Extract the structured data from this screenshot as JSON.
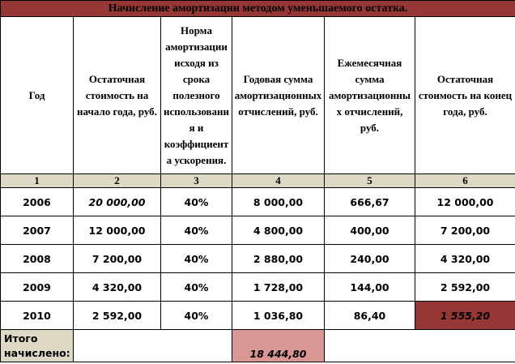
{
  "title": "Начисление амортизации методом уменьшаемого остатка.",
  "table": {
    "header": [
      "Год",
      "Остаточная стоимость на начало года, руб.",
      "Норма амортизации исходя из срока полезного использования и коэффициента ускорения.",
      "Годовая сумма амортизационных отчислений, руб.",
      "Ежемесячная сумма амортизационных отчислений, руб.",
      "Остаточная стоимость на конец года, руб."
    ],
    "column_numbers": [
      "1",
      "2",
      "3",
      "4",
      "5",
      "6"
    ],
    "rows": [
      [
        "2006",
        "20 000,00",
        "40%",
        "8 000,00",
        "666,67",
        "12 000,00"
      ],
      [
        "2007",
        "12 000,00",
        "40%",
        "4 800,00",
        "400,00",
        "7 200,00"
      ],
      [
        "2008",
        "7 200,00",
        "40%",
        "2 880,00",
        "240,00",
        "4 320,00"
      ],
      [
        "2009",
        "4 320,00",
        "40%",
        "1 728,00",
        "144,00",
        "2 592,00"
      ],
      [
        "2010",
        "2 592,00",
        "40%",
        "1 036,80",
        "86,40",
        "1 555,20"
      ]
    ],
    "total": {
      "label": "Итого начислено:",
      "value": "18 444,80"
    }
  }
}
